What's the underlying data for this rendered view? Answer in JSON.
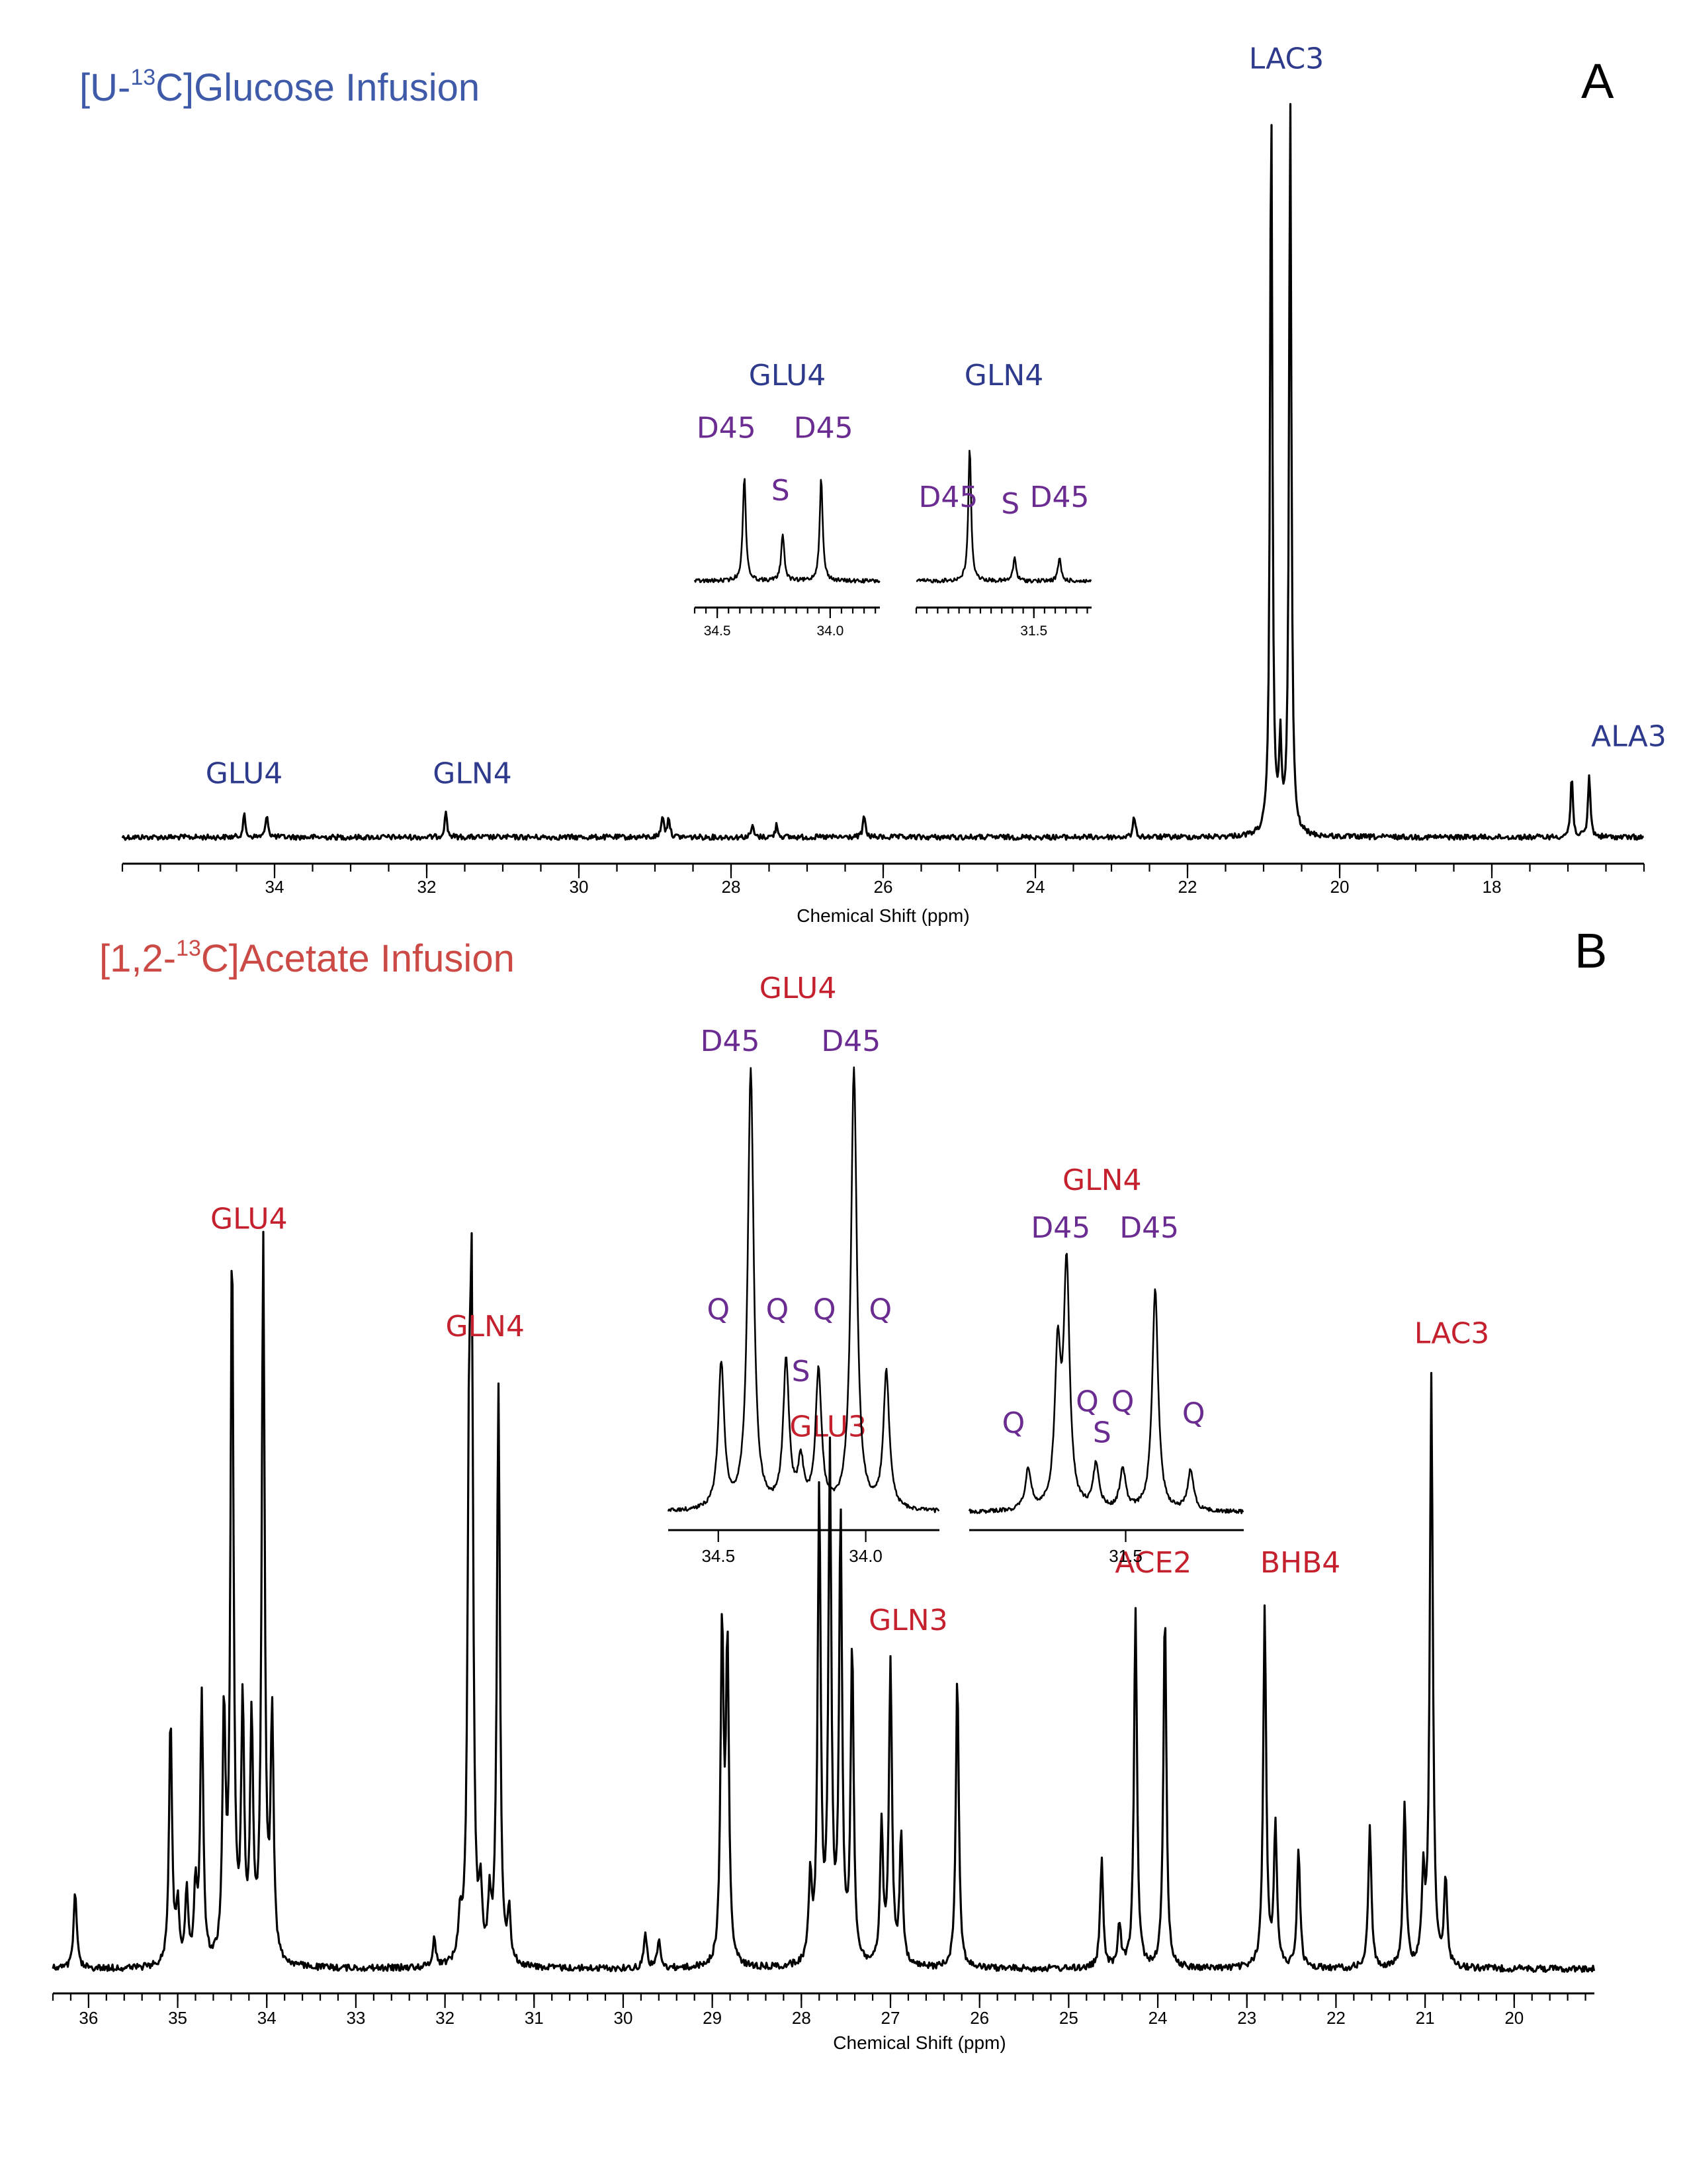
{
  "chart_data": [
    {
      "panel": "A",
      "type": "line",
      "title": "[U-13C]Glucose Infusion",
      "title_parts": [
        "[U-",
        "13",
        "C]Glucose Infusion"
      ],
      "panel_letter": "A",
      "xlabel": "Chemical Shift (ppm)",
      "xlim": [
        36.0,
        16.0
      ],
      "x_ticks": [
        34,
        32,
        30,
        28,
        26,
        24,
        22,
        20,
        18
      ],
      "x_tick_labels": [
        "34",
        "32",
        "30",
        "28",
        "26",
        "24",
        "22",
        "20",
        "18"
      ],
      "color": "#2e3a8c",
      "peaks": [
        {
          "x": 34.4,
          "h": 0.03
        },
        {
          "x": 34.1,
          "h": 0.032
        },
        {
          "x": 31.75,
          "h": 0.036
        },
        {
          "x": 28.9,
          "h": 0.03
        },
        {
          "x": 28.82,
          "h": 0.028
        },
        {
          "x": 27.72,
          "h": 0.016
        },
        {
          "x": 27.4,
          "h": 0.018
        },
        {
          "x": 26.25,
          "h": 0.03
        },
        {
          "x": 22.7,
          "h": 0.028
        },
        {
          "x": 20.9,
          "h": 1.0
        },
        {
          "x": 20.78,
          "h": 0.12
        },
        {
          "x": 20.65,
          "h": 0.99
        },
        {
          "x": 16.95,
          "h": 0.083
        },
        {
          "x": 16.72,
          "h": 0.085
        }
      ],
      "annotations": [
        {
          "text": "GLU4",
          "x": 34.4,
          "h": 0.06
        },
        {
          "text": "GLN4",
          "x": 31.4,
          "h": 0.06
        },
        {
          "text": "LAC3",
          "x": 20.7,
          "h": 1.02
        },
        {
          "text": "ALA3",
          "x": 16.2,
          "h": 0.11
        }
      ],
      "insets": [
        {
          "title": "GLU4",
          "xlim": [
            34.6,
            33.78
          ],
          "x_ticks": [
            34.5,
            34.0
          ],
          "x_tick_labels": [
            "34.5",
            "34.0"
          ],
          "peaks": [
            {
              "x": 34.38,
              "h": 0.72
            },
            {
              "x": 34.21,
              "h": 0.33
            },
            {
              "x": 34.04,
              "h": 0.7
            }
          ],
          "labels": [
            {
              "text": "D45",
              "x": 34.46,
              "h": 0.93
            },
            {
              "text": "S",
              "x": 34.22,
              "h": 0.5
            },
            {
              "text": "D45",
              "x": 34.03,
              "h": 0.93
            }
          ]
        },
        {
          "title": "GLN4",
          "xlim": [
            32.05,
            31.23
          ],
          "x_ticks": [
            31.5
          ],
          "x_tick_labels": [
            "31.5"
          ],
          "peaks": [
            {
              "x": 31.8,
              "h": 1.0
            },
            {
              "x": 31.59,
              "h": 0.18
            },
            {
              "x": 31.38,
              "h": 0.18
            }
          ],
          "labels": [
            {
              "text": "D45",
              "x": 31.9,
              "h": 0.5
            },
            {
              "text": "S",
              "x": 31.61,
              "h": 0.45
            },
            {
              "text": "D45",
              "x": 31.38,
              "h": 0.5
            }
          ]
        }
      ]
    },
    {
      "panel": "B",
      "type": "line",
      "title": "[1,2-13C]Acetate Infusion",
      "title_parts": [
        "[1,2-",
        "13",
        "C]Acetate Infusion"
      ],
      "panel_letter": "B",
      "xlabel": "Chemical Shift (ppm)",
      "xlim": [
        36.4,
        19.1
      ],
      "x_ticks": [
        36,
        35,
        34,
        33,
        32,
        31,
        30,
        29,
        28,
        27,
        26,
        25,
        24,
        23,
        22,
        21,
        20
      ],
      "x_tick_labels": [
        "36",
        "35",
        "34",
        "33",
        "32",
        "31",
        "30",
        "29",
        "28",
        "27",
        "26",
        "25",
        "24",
        "23",
        "22",
        "21",
        "20"
      ],
      "color": "#c4202e",
      "peaks": [
        {
          "x": 36.15,
          "h": 0.11
        },
        {
          "x": 35.08,
          "h": 0.35
        },
        {
          "x": 35.0,
          "h": 0.08
        },
        {
          "x": 34.9,
          "h": 0.1
        },
        {
          "x": 34.8,
          "h": 0.1
        },
        {
          "x": 34.73,
          "h": 0.37
        },
        {
          "x": 34.48,
          "h": 0.34
        },
        {
          "x": 34.39,
          "h": 1.0
        },
        {
          "x": 34.27,
          "h": 0.35
        },
        {
          "x": 34.17,
          "h": 0.33
        },
        {
          "x": 34.04,
          "h": 1.0
        },
        {
          "x": 33.94,
          "h": 0.34
        },
        {
          "x": 32.12,
          "h": 0.04
        },
        {
          "x": 31.83,
          "h": 0.06
        },
        {
          "x": 31.73,
          "h": 0.6
        },
        {
          "x": 31.7,
          "h": 0.83
        },
        {
          "x": 31.6,
          "h": 0.09
        },
        {
          "x": 31.5,
          "h": 0.08
        },
        {
          "x": 31.4,
          "h": 0.81
        },
        {
          "x": 31.28,
          "h": 0.07
        },
        {
          "x": 29.75,
          "h": 0.05
        },
        {
          "x": 29.6,
          "h": 0.04
        },
        {
          "x": 28.89,
          "h": 0.47
        },
        {
          "x": 28.83,
          "h": 0.44
        },
        {
          "x": 27.9,
          "h": 0.12
        },
        {
          "x": 27.8,
          "h": 0.66
        },
        {
          "x": 27.68,
          "h": 0.7
        },
        {
          "x": 27.56,
          "h": 0.62
        },
        {
          "x": 27.43,
          "h": 0.44
        },
        {
          "x": 27.1,
          "h": 0.19
        },
        {
          "x": 27.0,
          "h": 0.42
        },
        {
          "x": 26.88,
          "h": 0.18
        },
        {
          "x": 26.25,
          "h": 0.41
        },
        {
          "x": 24.63,
          "h": 0.15
        },
        {
          "x": 24.43,
          "h": 0.06
        },
        {
          "x": 24.25,
          "h": 0.5
        },
        {
          "x": 23.92,
          "h": 0.5
        },
        {
          "x": 22.8,
          "h": 0.5
        },
        {
          "x": 22.68,
          "h": 0.2
        },
        {
          "x": 22.42,
          "h": 0.17
        },
        {
          "x": 21.62,
          "h": 0.2
        },
        {
          "x": 21.23,
          "h": 0.23
        },
        {
          "x": 21.02,
          "h": 0.12
        },
        {
          "x": 20.93,
          "h": 0.82
        },
        {
          "x": 20.77,
          "h": 0.12
        }
      ],
      "annotations": [
        {
          "text": "GLU4",
          "x": 34.2,
          "h": 1.02
        },
        {
          "text": "GLN4",
          "x": 31.55,
          "h": 0.87
        },
        {
          "text": "GLU3",
          "x": 27.7,
          "h": 0.73
        },
        {
          "text": "GLN3",
          "x": 26.8,
          "h": 0.46
        },
        {
          "text": "ACE2",
          "x": 24.05,
          "h": 0.54
        },
        {
          "text": "BHB4",
          "x": 22.4,
          "h": 0.54
        },
        {
          "text": "LAC3",
          "x": 20.7,
          "h": 0.86
        }
      ],
      "insets": [
        {
          "title": "GLU4",
          "xlim": [
            34.67,
            33.75
          ],
          "x_ticks": [
            34.5,
            34.0
          ],
          "x_tick_labels": [
            "34.5",
            "34.0"
          ],
          "peaks": [
            {
              "x": 34.49,
              "h": 0.33
            },
            {
              "x": 34.39,
              "h": 1.0
            },
            {
              "x": 34.27,
              "h": 0.33
            },
            {
              "x": 34.22,
              "h": 0.1
            },
            {
              "x": 34.16,
              "h": 0.31
            },
            {
              "x": 34.04,
              "h": 1.0
            },
            {
              "x": 33.93,
              "h": 0.31
            }
          ],
          "labels": [
            {
              "text": "Q",
              "x": 34.5,
              "h": 0.42
            },
            {
              "text": "Q",
              "x": 34.3,
              "h": 0.42
            },
            {
              "text": "S",
              "x": 34.22,
              "h": 0.28
            },
            {
              "text": "Q",
              "x": 34.14,
              "h": 0.42
            },
            {
              "text": "Q",
              "x": 33.95,
              "h": 0.42
            },
            {
              "text": "D45",
              "x": 34.46,
              "h": 1.03
            },
            {
              "text": "D45",
              "x": 34.05,
              "h": 1.03
            }
          ]
        },
        {
          "title": "GLN4",
          "xlim": [
            32.03,
            31.1
          ],
          "x_ticks": [
            31.5
          ],
          "x_tick_labels": [
            "31.5"
          ],
          "peaks": [
            {
              "x": 31.83,
              "h": 0.17
            },
            {
              "x": 31.73,
              "h": 0.64
            },
            {
              "x": 31.7,
              "h": 1.0
            },
            {
              "x": 31.6,
              "h": 0.19
            },
            {
              "x": 31.51,
              "h": 0.17
            },
            {
              "x": 31.4,
              "h": 0.93
            },
            {
              "x": 31.28,
              "h": 0.17
            }
          ],
          "labels": [
            {
              "text": "Q",
              "x": 31.88,
              "h": 0.3
            },
            {
              "text": "Q",
              "x": 31.63,
              "h": 0.39
            },
            {
              "text": "S",
              "x": 31.58,
              "h": 0.26
            },
            {
              "text": "Q",
              "x": 31.51,
              "h": 0.39
            },
            {
              "text": "Q",
              "x": 31.27,
              "h": 0.34
            },
            {
              "text": "D45",
              "x": 31.72,
              "h": 1.12
            },
            {
              "text": "D45",
              "x": 31.42,
              "h": 1.12
            },
            {
              "text": "GLN4",
              "x": 31.58,
              "h": 1.32
            }
          ]
        }
      ]
    }
  ],
  "colors": {
    "blue": "#2e3a8c",
    "title_blue": "#3f5aa8",
    "red": "#c4202e",
    "title_red": "#cc4a45",
    "purple": "#6b2c91"
  }
}
